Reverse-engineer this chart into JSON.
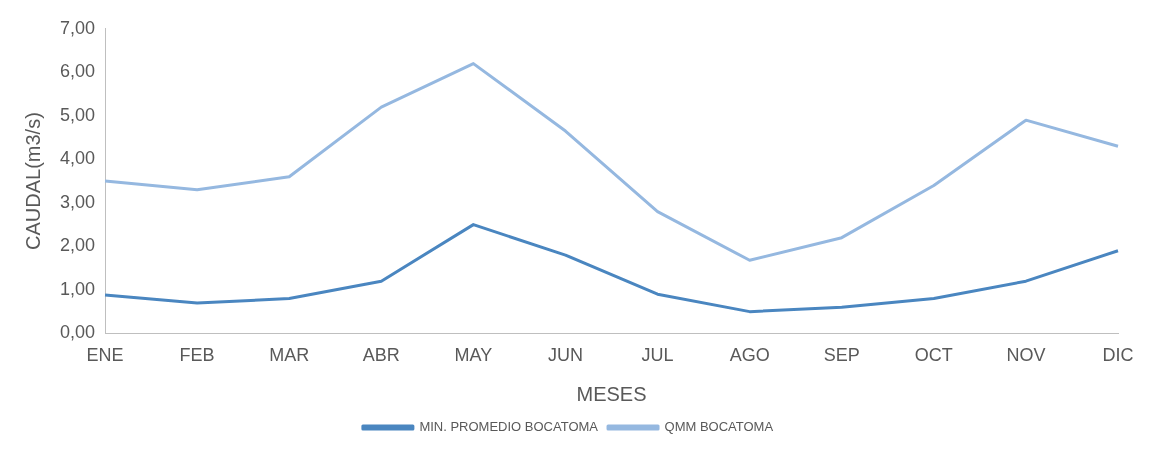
{
  "chart_data": {
    "type": "line",
    "xlabel": "MESES",
    "ylabel": "CAUDAL(m3/s)",
    "categories": [
      "ENE",
      "FEB",
      "MAR",
      "ABR",
      "MAY",
      "JUN",
      "JUL",
      "AGO",
      "SEP",
      "OCT",
      "NOV",
      "DIC"
    ],
    "series": [
      {
        "name": "MIN. PROMEDIO BOCATOMA",
        "color": "#4a86c0",
        "values": [
          0.88,
          0.7,
          0.8,
          1.2,
          2.5,
          1.8,
          0.9,
          0.5,
          0.6,
          0.8,
          1.2,
          1.9
        ]
      },
      {
        "name": "QMM BOCATOMA",
        "color": "#95b8e0",
        "values": [
          3.5,
          3.3,
          3.6,
          5.2,
          6.2,
          4.65,
          2.8,
          1.68,
          2.2,
          3.4,
          4.9,
          4.3
        ]
      }
    ],
    "ylim": [
      0,
      7
    ],
    "yticks": [
      {
        "value": 0,
        "label": "0,00"
      },
      {
        "value": 1,
        "label": "1,00"
      },
      {
        "value": 2,
        "label": "2,00"
      },
      {
        "value": 3,
        "label": "3,00"
      },
      {
        "value": 4,
        "label": "4,00"
      },
      {
        "value": 5,
        "label": "5,00"
      },
      {
        "value": 6,
        "label": "6,00"
      },
      {
        "value": 7,
        "label": "7,00"
      }
    ],
    "grid": false,
    "legend": "bottom",
    "marker": "none",
    "line_style": "solid"
  }
}
